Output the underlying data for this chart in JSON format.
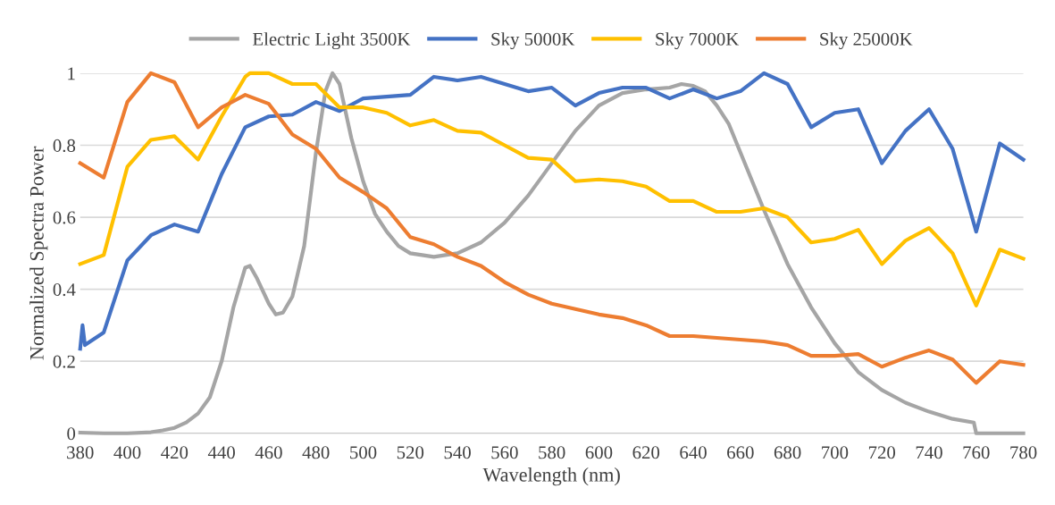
{
  "chart_data": {
    "type": "line",
    "xlabel": "Wavelength (nm)",
    "ylabel": "Normalized Spectra Power",
    "xlim": [
      380,
      780
    ],
    "xticks": [
      380,
      400,
      420,
      440,
      460,
      480,
      500,
      520,
      540,
      560,
      580,
      600,
      620,
      640,
      660,
      680,
      700,
      720,
      740,
      760,
      780
    ],
    "ylim": [
      0,
      1
    ],
    "yticks": [
      0,
      0.2,
      0.4,
      0.6,
      0.8,
      1
    ],
    "grid": "y",
    "legend": "top",
    "line_style": "solid",
    "marker": "none",
    "series": [
      {
        "name": "Electric Light 3500K",
        "color": "#a5a5a5",
        "x": [
          380,
          390,
          400,
          410,
          415,
          420,
          425,
          430,
          435,
          440,
          445,
          450,
          452,
          455,
          460,
          463,
          466,
          470,
          475,
          480,
          484,
          487,
          490,
          495,
          500,
          505,
          510,
          515,
          520,
          530,
          540,
          550,
          560,
          570,
          580,
          590,
          600,
          610,
          620,
          630,
          635,
          640,
          645,
          650,
          655,
          660,
          670,
          680,
          690,
          700,
          710,
          720,
          730,
          740,
          750,
          759,
          760,
          780
        ],
        "values": [
          0.002,
          0,
          0,
          0.003,
          0.008,
          0.015,
          0.03,
          0.055,
          0.1,
          0.2,
          0.35,
          0.46,
          0.465,
          0.43,
          0.36,
          0.33,
          0.335,
          0.38,
          0.52,
          0.78,
          0.95,
          1.0,
          0.97,
          0.82,
          0.7,
          0.61,
          0.56,
          0.52,
          0.5,
          0.49,
          0.5,
          0.53,
          0.585,
          0.66,
          0.75,
          0.84,
          0.91,
          0.945,
          0.955,
          0.96,
          0.97,
          0.965,
          0.95,
          0.91,
          0.86,
          0.78,
          0.62,
          0.47,
          0.35,
          0.25,
          0.17,
          0.12,
          0.085,
          0.06,
          0.04,
          0.03,
          0.0,
          0.0
        ]
      },
      {
        "name": "Sky 5000K",
        "color": "#4472c4",
        "x": [
          380,
          381,
          382,
          390,
          400,
          410,
          420,
          430,
          440,
          450,
          460,
          470,
          480,
          490,
          500,
          510,
          520,
          530,
          540,
          550,
          560,
          570,
          580,
          590,
          600,
          610,
          620,
          630,
          640,
          650,
          660,
          670,
          680,
          690,
          700,
          710,
          720,
          730,
          740,
          750,
          760,
          770,
          780
        ],
        "values": [
          0.235,
          0.3,
          0.245,
          0.28,
          0.48,
          0.55,
          0.58,
          0.56,
          0.72,
          0.85,
          0.88,
          0.885,
          0.92,
          0.895,
          0.93,
          0.935,
          0.94,
          0.99,
          0.98,
          0.99,
          0.97,
          0.95,
          0.96,
          0.91,
          0.945,
          0.96,
          0.96,
          0.93,
          0.955,
          0.93,
          0.95,
          1.0,
          0.97,
          0.85,
          0.89,
          0.9,
          0.75,
          0.84,
          0.9,
          0.79,
          0.56,
          0.805,
          0.76
        ]
      },
      {
        "name": "Sky 7000K",
        "color": "#ffc000",
        "x": [
          380,
          390,
          400,
          410,
          420,
          430,
          440,
          450,
          452,
          460,
          470,
          480,
          490,
          500,
          510,
          520,
          530,
          540,
          550,
          560,
          570,
          580,
          590,
          600,
          610,
          620,
          630,
          640,
          650,
          660,
          670,
          680,
          690,
          700,
          710,
          720,
          730,
          740,
          750,
          760,
          770,
          780
        ],
        "values": [
          0.47,
          0.495,
          0.74,
          0.815,
          0.825,
          0.76,
          0.88,
          0.99,
          1.0,
          1.0,
          0.97,
          0.97,
          0.905,
          0.905,
          0.89,
          0.855,
          0.87,
          0.84,
          0.835,
          0.8,
          0.765,
          0.76,
          0.7,
          0.705,
          0.7,
          0.685,
          0.645,
          0.645,
          0.615,
          0.615,
          0.625,
          0.6,
          0.53,
          0.54,
          0.565,
          0.47,
          0.535,
          0.57,
          0.5,
          0.355,
          0.51,
          0.485
        ]
      },
      {
        "name": "Sky 25000K",
        "color": "#ed7d31",
        "x": [
          380,
          390,
          400,
          410,
          420,
          430,
          440,
          450,
          460,
          470,
          480,
          490,
          500,
          510,
          520,
          530,
          540,
          550,
          560,
          570,
          580,
          590,
          600,
          610,
          620,
          630,
          640,
          650,
          660,
          670,
          680,
          690,
          700,
          710,
          720,
          730,
          740,
          750,
          760,
          770,
          780
        ],
        "values": [
          0.75,
          0.71,
          0.92,
          1.0,
          0.975,
          0.85,
          0.905,
          0.94,
          0.915,
          0.83,
          0.79,
          0.71,
          0.67,
          0.625,
          0.545,
          0.525,
          0.49,
          0.465,
          0.42,
          0.385,
          0.36,
          0.345,
          0.33,
          0.32,
          0.3,
          0.27,
          0.27,
          0.265,
          0.26,
          0.255,
          0.245,
          0.215,
          0.215,
          0.22,
          0.185,
          0.21,
          0.23,
          0.205,
          0.14,
          0.2,
          0.19
        ]
      }
    ]
  }
}
